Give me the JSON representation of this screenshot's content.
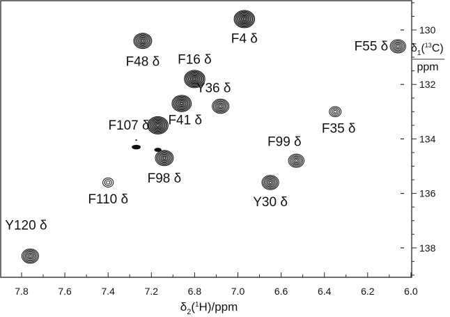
{
  "chart_data": {
    "type": "scatter",
    "subtype": "2D NMR contour spectrum (1H-13C)",
    "title": "",
    "xlabel": "δ2(1H)/ppm",
    "ylabel": "δ1(13C)/ppm",
    "x_axis": {
      "label_main": "δ",
      "label_sub": "2",
      "label_rest": "(",
      "label_sup": "1",
      "label_tail": "H)/ppm",
      "range": [
        7.9,
        6.0
      ],
      "reversed": true,
      "tick_labels": [
        "7.8",
        "7.6",
        "7.4",
        "7.2",
        "6.8",
        "7.0",
        "6.6",
        "6.4",
        "6.2",
        "6.0"
      ]
    },
    "y_axis": {
      "label_main": "δ",
      "label_sub": "1",
      "label_rest": "(",
      "label_sup": "13",
      "label_tail": "C)",
      "label_unit": "ppm",
      "range": [
        129.0,
        139.0
      ],
      "reversed": true,
      "position": "right",
      "tick_labels": [
        "130",
        "132",
        "134",
        "136",
        "138"
      ]
    },
    "grid": false,
    "legend": null,
    "peaks": [
      {
        "label": "F4 δ",
        "x": 6.77,
        "y": 129.6,
        "size": 1.2
      },
      {
        "label": "F48 δ",
        "x": 7.24,
        "y": 130.4,
        "size": 1.0
      },
      {
        "label": "F55 δ",
        "x": 6.06,
        "y": 130.6,
        "size": 0.8
      },
      {
        "label": "F16 δ",
        "x": 7.0,
        "y": 131.8,
        "size": 1.2
      },
      {
        "label": "Y36 δ",
        "x": 6.88,
        "y": 132.8,
        "size": 0.9
      },
      {
        "label": "F41 δ",
        "x": 7.06,
        "y": 132.7,
        "size": 1.1
      },
      {
        "label": "F35 δ",
        "x": 6.35,
        "y": 133.0,
        "size": 0.5
      },
      {
        "label": "F107 δ",
        "x": 7.17,
        "y": 133.5,
        "size": 1.2
      },
      {
        "label": "F98 δ",
        "x": 7.14,
        "y": 134.7,
        "size": 1.0
      },
      {
        "label": "F99 δ",
        "x": 6.53,
        "y": 134.8,
        "size": 0.8
      },
      {
        "label": "F110 δ",
        "x": 7.4,
        "y": 135.6,
        "size": 0.4
      },
      {
        "label": "Y30 δ",
        "x": 6.65,
        "y": 135.6,
        "size": 0.9
      },
      {
        "label": "Y120 δ",
        "x": 7.76,
        "y": 138.3,
        "size": 0.9
      }
    ],
    "unlabeled_peaks": [
      {
        "x": 7.27,
        "y": 134.3,
        "size": 0.4
      },
      {
        "x": 7.17,
        "y": 134.4,
        "size": 0.2
      }
    ]
  }
}
